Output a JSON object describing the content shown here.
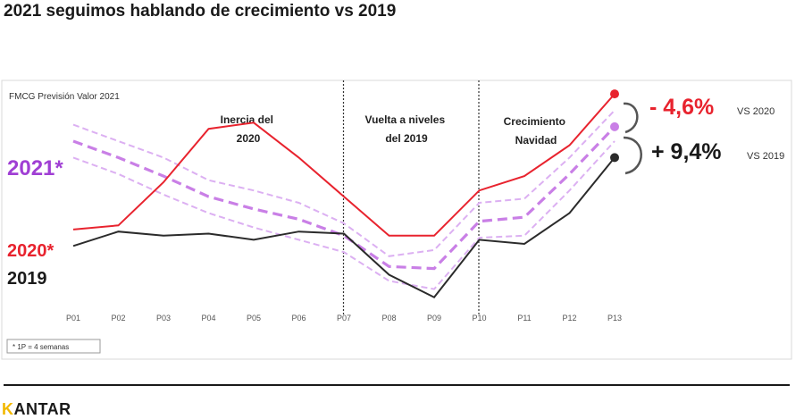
{
  "title": "2021 seguimos hablando de crecimiento vs 2019",
  "brand": {
    "first_letter": "K",
    "rest": "ANTAR",
    "accent": "#f2b800"
  },
  "chart_data": {
    "type": "line",
    "subtitle": "FMCG Previsión Valor 2021",
    "categories": [
      "P01",
      "P02",
      "P03",
      "P04",
      "P05",
      "P06",
      "P07",
      "P08",
      "P09",
      "P10",
      "P11",
      "P12",
      "P13"
    ],
    "y_range": [
      0,
      100
    ],
    "grid": false,
    "series": [
      {
        "name": "2020*",
        "color": "#e8232e",
        "style": "solid",
        "values": [
          37,
          39,
          60,
          86,
          89,
          72,
          53,
          34,
          34,
          56,
          63,
          78,
          103
        ]
      },
      {
        "name": "2019",
        "color": "#2b2b2b",
        "style": "solid",
        "values": [
          29,
          36,
          34,
          35,
          32,
          36,
          35,
          15,
          4,
          32,
          30,
          45,
          72
        ]
      },
      {
        "name": "2021*",
        "color": "#c97fe6",
        "style": "dashed-band",
        "values": [
          80,
          72,
          63,
          53,
          47,
          42,
          34,
          19,
          18,
          41,
          43,
          64,
          87
        ],
        "upper": [
          88,
          80,
          72,
          61,
          56,
          50,
          40,
          24,
          27,
          50,
          52,
          72,
          95
        ],
        "lower": [
          72,
          64,
          54,
          45,
          38,
          32,
          26,
          12,
          8,
          33,
          34,
          56,
          80
        ]
      }
    ],
    "period_dividers_after": [
      "P07",
      "P10"
    ],
    "section_labels": [
      {
        "lines": [
          "Inercia del",
          "2020"
        ]
      },
      {
        "lines": [
          "Vuelta a niveles",
          "del 2019"
        ]
      },
      {
        "lines": [
          "Crecimiento",
          "Navidad"
        ]
      }
    ],
    "annotations": [
      {
        "value": "- 4,6%",
        "suffix": "VS 2020",
        "color": "#e8232e"
      },
      {
        "value": "+ 9,4%",
        "suffix": "VS 2019",
        "color": "#1a1a1a"
      }
    ],
    "footnote": "* 1P = 4 semanas"
  }
}
